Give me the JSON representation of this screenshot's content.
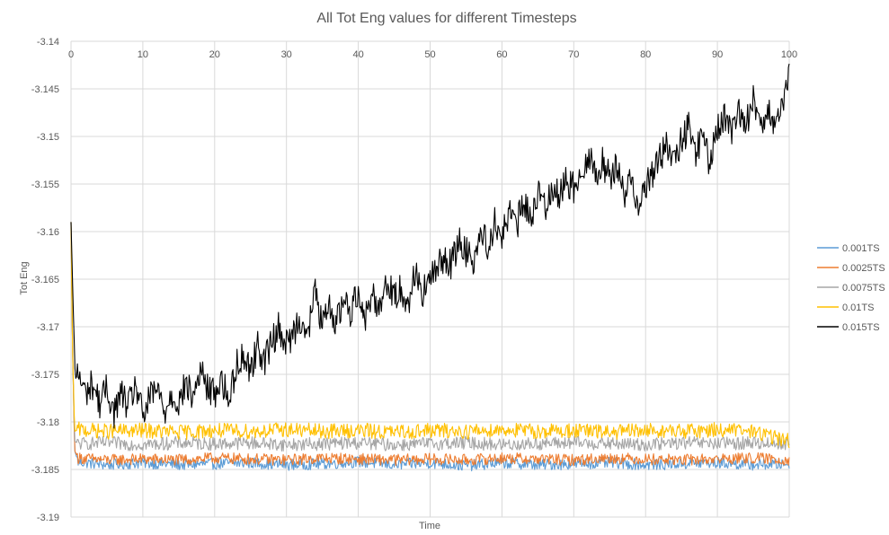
{
  "chart_data": {
    "type": "line",
    "title": "All Tot Eng values for different Timesteps",
    "xlabel": "Time",
    "ylabel": "Tot Eng",
    "xlim": [
      0,
      100
    ],
    "ylim": [
      -3.19,
      -3.14
    ],
    "x_ticks": [
      "0",
      "10",
      "20",
      "30",
      "40",
      "50",
      "60",
      "70",
      "80",
      "90",
      "100"
    ],
    "y_ticks": [
      "-3.14",
      "-3.145",
      "-3.15",
      "-3.155",
      "-3.16",
      "-3.165",
      "-3.17",
      "-3.175",
      "-3.18",
      "-3.185",
      "-3.19"
    ],
    "grid": true,
    "legend_position": "right",
    "series": [
      {
        "name": "0.001TS",
        "color": "#5b9bd5",
        "x": [
          0,
          0.2,
          0.5,
          1,
          5,
          10,
          15,
          20,
          25,
          30,
          35,
          40,
          45,
          50,
          55,
          60,
          65,
          70,
          75,
          80,
          85,
          90,
          95,
          100
        ],
        "y": [
          -3.159,
          -3.172,
          -3.183,
          -3.1842,
          -3.1845,
          -3.1843,
          -3.1845,
          -3.1844,
          -3.1843,
          -3.1845,
          -3.1844,
          -3.1842,
          -3.1845,
          -3.1843,
          -3.1846,
          -3.1843,
          -3.1845,
          -3.1844,
          -3.1843,
          -3.1845,
          -3.1844,
          -3.1843,
          -3.1845,
          -3.1844
        ]
      },
      {
        "name": "0.0025TS",
        "color": "#ed7d31",
        "x": [
          0,
          0.2,
          0.5,
          1,
          5,
          10,
          15,
          20,
          25,
          30,
          35,
          40,
          45,
          50,
          55,
          60,
          65,
          70,
          75,
          80,
          85,
          90,
          95,
          100
        ],
        "y": [
          -3.159,
          -3.172,
          -3.183,
          -3.1838,
          -3.184,
          -3.1839,
          -3.184,
          -3.1838,
          -3.1839,
          -3.184,
          -3.1838,
          -3.1839,
          -3.184,
          -3.1839,
          -3.184,
          -3.1838,
          -3.1839,
          -3.184,
          -3.1838,
          -3.1839,
          -3.184,
          -3.1839,
          -3.1838,
          -3.184
        ]
      },
      {
        "name": "0.0075TS",
        "color": "#a5a5a5",
        "x": [
          0,
          0.2,
          0.5,
          1,
          5,
          10,
          15,
          20,
          25,
          30,
          35,
          40,
          45,
          50,
          55,
          60,
          65,
          70,
          75,
          80,
          85,
          90,
          95,
          100
        ],
        "y": [
          -3.159,
          -3.172,
          -3.182,
          -3.1823,
          -3.1822,
          -3.1824,
          -3.1822,
          -3.1823,
          -3.1822,
          -3.1824,
          -3.1823,
          -3.1822,
          -3.1824,
          -3.1823,
          -3.1822,
          -3.1824,
          -3.1823,
          -3.1822,
          -3.1823,
          -3.1824,
          -3.1822,
          -3.1823,
          -3.1822,
          -3.1823
        ]
      },
      {
        "name": "0.01TS",
        "color": "#ffc000",
        "x": [
          0,
          0.2,
          0.5,
          1,
          5,
          10,
          15,
          20,
          25,
          30,
          35,
          40,
          45,
          50,
          55,
          60,
          65,
          70,
          75,
          80,
          85,
          90,
          95,
          100
        ],
        "y": [
          -3.159,
          -3.172,
          -3.181,
          -3.1808,
          -3.181,
          -3.1809,
          -3.1811,
          -3.1809,
          -3.181,
          -3.1808,
          -3.181,
          -3.1809,
          -3.1811,
          -3.1809,
          -3.181,
          -3.1808,
          -3.181,
          -3.1809,
          -3.1811,
          -3.1809,
          -3.181,
          -3.1808,
          -3.181,
          -3.182
        ]
      },
      {
        "name": "0.015TS",
        "color": "#000000",
        "x": [
          0,
          0.3,
          0.6,
          1,
          2,
          3,
          4,
          5,
          6,
          7,
          8,
          9,
          10,
          11,
          12,
          13,
          14,
          15,
          16,
          17,
          18,
          19,
          20,
          21,
          22,
          23,
          24,
          25,
          26,
          27,
          28,
          29,
          30,
          31,
          32,
          33,
          34,
          35,
          36,
          37,
          38,
          39,
          40,
          41,
          42,
          43,
          44,
          45,
          46,
          47,
          48,
          49,
          50,
          51,
          52,
          53,
          54,
          55,
          56,
          57,
          58,
          59,
          60,
          61,
          62,
          63,
          64,
          65,
          66,
          67,
          68,
          69,
          70,
          71,
          72,
          73,
          74,
          75,
          76,
          77,
          78,
          79,
          80,
          81,
          82,
          83,
          84,
          85,
          86,
          87,
          88,
          89,
          90,
          91,
          92,
          93,
          94,
          95,
          96,
          97,
          98,
          99,
          100
        ],
        "y": [
          -3.159,
          -3.168,
          -3.1755,
          -3.175,
          -3.177,
          -3.176,
          -3.178,
          -3.1765,
          -3.179,
          -3.177,
          -3.1785,
          -3.176,
          -3.1795,
          -3.1775,
          -3.1765,
          -3.179,
          -3.177,
          -3.178,
          -3.176,
          -3.1775,
          -3.1745,
          -3.1765,
          -3.177,
          -3.1755,
          -3.178,
          -3.174,
          -3.173,
          -3.1745,
          -3.172,
          -3.1735,
          -3.1715,
          -3.17,
          -3.172,
          -3.1705,
          -3.169,
          -3.171,
          -3.166,
          -3.17,
          -3.168,
          -3.1695,
          -3.167,
          -3.1685,
          -3.166,
          -3.169,
          -3.1665,
          -3.168,
          -3.165,
          -3.167,
          -3.166,
          -3.1675,
          -3.164,
          -3.1665,
          -3.165,
          -3.164,
          -3.1625,
          -3.1635,
          -3.161,
          -3.162,
          -3.163,
          -3.16,
          -3.1615,
          -3.159,
          -3.1605,
          -3.158,
          -3.1595,
          -3.157,
          -3.1585,
          -3.156,
          -3.1575,
          -3.155,
          -3.1565,
          -3.1545,
          -3.1555,
          -3.1535,
          -3.152,
          -3.154,
          -3.1525,
          -3.1545,
          -3.153,
          -3.156,
          -3.1545,
          -3.157,
          -3.155,
          -3.154,
          -3.152,
          -3.151,
          -3.153,
          -3.1505,
          -3.149,
          -3.1515,
          -3.15,
          -3.153,
          -3.149,
          -3.148,
          -3.15,
          -3.147,
          -3.149,
          -3.146,
          -3.1485,
          -3.147,
          -3.1495,
          -3.1475,
          -3.143
        ]
      }
    ]
  }
}
